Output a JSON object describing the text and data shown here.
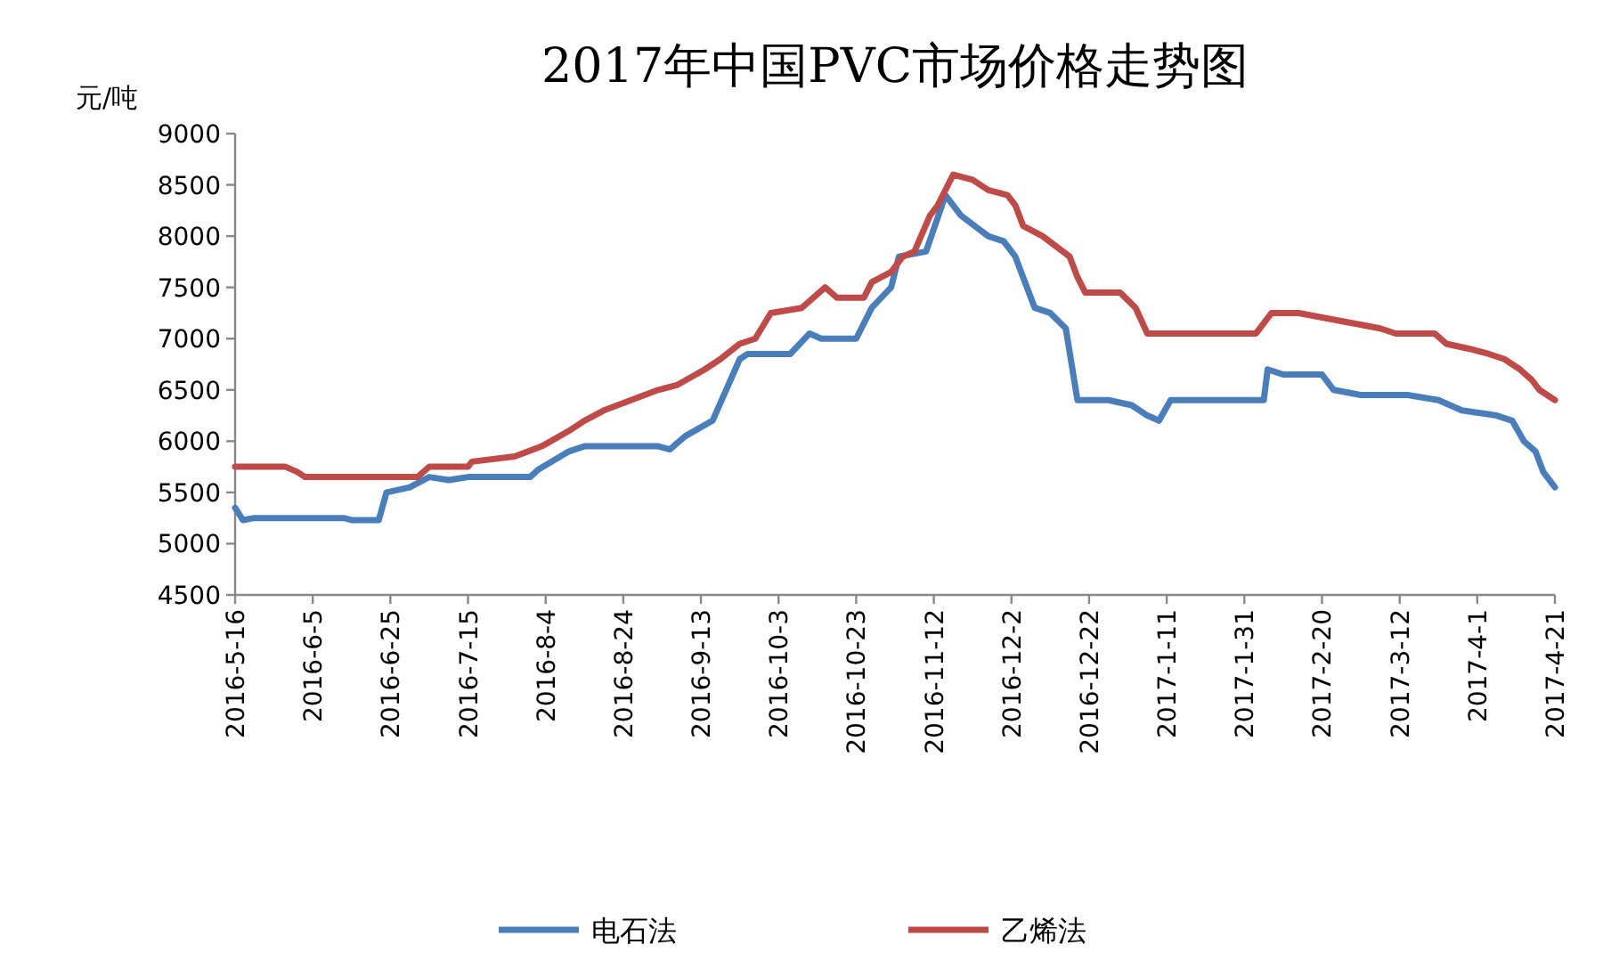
{
  "chart_data": {
    "type": "line",
    "title": "2017年中国PVC市场价格走势图",
    "ylabel": "元/吨",
    "legend": "bottom",
    "grid": false,
    "ylim": [
      4500,
      9000
    ],
    "yticks": [
      4500,
      5000,
      5500,
      6000,
      6500,
      7000,
      7500,
      8000,
      8500,
      9000
    ],
    "xlim": [
      "2016-05-16",
      "2017-04-21"
    ],
    "xticks": [
      {
        "value": "2016-05-16",
        "label": "2016-5-16"
      },
      {
        "value": "2016-06-05",
        "label": "2016-6-5"
      },
      {
        "value": "2016-06-25",
        "label": "2016-6-25"
      },
      {
        "value": "2016-07-15",
        "label": "2016-7-15"
      },
      {
        "value": "2016-08-04",
        "label": "2016-8-4"
      },
      {
        "value": "2016-08-24",
        "label": "2016-8-24"
      },
      {
        "value": "2016-09-13",
        "label": "2016-9-13"
      },
      {
        "value": "2016-10-03",
        "label": "2016-10-3"
      },
      {
        "value": "2016-10-23",
        "label": "2016-10-23"
      },
      {
        "value": "2016-11-12",
        "label": "2016-11-12"
      },
      {
        "value": "2016-12-02",
        "label": "2016-12-2"
      },
      {
        "value": "2016-12-22",
        "label": "2016-12-22"
      },
      {
        "value": "2017-01-11",
        "label": "2017-1-11"
      },
      {
        "value": "2017-01-31",
        "label": "2017-1-31"
      },
      {
        "value": "2017-02-20",
        "label": "2017-2-20"
      },
      {
        "value": "2017-03-12",
        "label": "2017-3-12"
      },
      {
        "value": "2017-04-01",
        "label": "2017-4-1"
      },
      {
        "value": "2017-04-21",
        "label": "2017-4-21"
      }
    ],
    "series": [
      {
        "name": "电石法",
        "color": "#4a7ebb",
        "x": [
          "2016-05-16",
          "2016-05-18",
          "2016-05-21",
          "2016-06-13",
          "2016-06-15",
          "2016-06-22",
          "2016-06-24",
          "2016-06-30",
          "2016-07-05",
          "2016-07-10",
          "2016-07-15",
          "2016-07-31",
          "2016-08-02",
          "2016-08-10",
          "2016-08-14",
          "2016-09-02",
          "2016-09-05",
          "2016-09-09",
          "2016-09-16",
          "2016-09-23",
          "2016-09-25",
          "2016-10-06",
          "2016-10-11",
          "2016-10-14",
          "2016-10-23",
          "2016-10-27",
          "2016-11-01",
          "2016-11-03",
          "2016-11-10",
          "2016-11-15",
          "2016-11-19",
          "2016-11-26",
          "2016-11-30",
          "2016-12-03",
          "2016-12-05",
          "2016-12-08",
          "2016-12-12",
          "2016-12-16",
          "2016-12-19",
          "2016-12-27",
          "2017-01-02",
          "2017-01-06",
          "2017-01-09",
          "2017-01-12",
          "2017-02-05",
          "2017-02-06",
          "2017-02-10",
          "2017-02-20",
          "2017-02-23",
          "2017-03-02",
          "2017-03-14",
          "2017-03-22",
          "2017-03-28",
          "2017-04-06",
          "2017-04-10",
          "2017-04-13",
          "2017-04-16",
          "2017-04-18",
          "2017-04-21"
        ],
        "values": [
          5350,
          5230,
          5250,
          5250,
          5230,
          5230,
          5500,
          5550,
          5650,
          5620,
          5650,
          5650,
          5720,
          5900,
          5950,
          5950,
          5920,
          6050,
          6200,
          6800,
          6850,
          6850,
          7050,
          7000,
          7000,
          7300,
          7500,
          7800,
          7850,
          8400,
          8200,
          8000,
          7950,
          7800,
          7600,
          7300,
          7250,
          7100,
          6400,
          6400,
          6350,
          6250,
          6200,
          6400,
          6400,
          6700,
          6650,
          6650,
          6500,
          6450,
          6450,
          6400,
          6300,
          6250,
          6200,
          6000,
          5900,
          5700,
          5550
        ]
      },
      {
        "name": "乙烯法",
        "color": "#be4b48",
        "x": [
          "2016-05-16",
          "2016-05-29",
          "2016-06-01",
          "2016-06-03",
          "2016-07-02",
          "2016-07-05",
          "2016-07-15",
          "2016-07-16",
          "2016-07-27",
          "2016-08-03",
          "2016-08-10",
          "2016-08-14",
          "2016-08-19",
          "2016-08-26",
          "2016-09-02",
          "2016-09-07",
          "2016-09-14",
          "2016-09-18",
          "2016-09-23",
          "2016-09-27",
          "2016-10-01",
          "2016-10-09",
          "2016-10-15",
          "2016-10-18",
          "2016-10-25",
          "2016-10-27",
          "2016-11-01",
          "2016-11-04",
          "2016-11-07",
          "2016-11-11",
          "2016-11-13",
          "2016-11-17",
          "2016-11-22",
          "2016-11-26",
          "2016-12-01",
          "2016-12-03",
          "2016-12-05",
          "2016-12-10",
          "2016-12-17",
          "2016-12-19",
          "2016-12-21",
          "2016-12-30",
          "2017-01-03",
          "2017-01-06",
          "2017-02-03",
          "2017-02-07",
          "2017-02-14",
          "2017-02-21",
          "2017-02-28",
          "2017-03-07",
          "2017-03-11",
          "2017-03-21",
          "2017-03-24",
          "2017-03-30",
          "2017-04-04",
          "2017-04-08",
          "2017-04-12",
          "2017-04-15",
          "2017-04-17",
          "2017-04-21"
        ],
        "values": [
          5750,
          5750,
          5700,
          5650,
          5650,
          5750,
          5750,
          5800,
          5850,
          5950,
          6100,
          6200,
          6300,
          6400,
          6500,
          6550,
          6700,
          6800,
          6950,
          7000,
          7250,
          7300,
          7500,
          7400,
          7400,
          7550,
          7650,
          7800,
          7850,
          8200,
          8300,
          8600,
          8550,
          8450,
          8400,
          8300,
          8100,
          8000,
          7800,
          7600,
          7450,
          7450,
          7300,
          7050,
          7050,
          7250,
          7250,
          7200,
          7150,
          7100,
          7050,
          7050,
          6950,
          6900,
          6850,
          6800,
          6700,
          6600,
          6500,
          6400
        ]
      }
    ]
  }
}
